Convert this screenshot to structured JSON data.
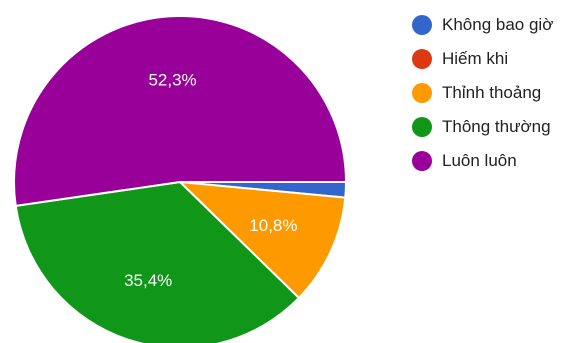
{
  "chart_data": {
    "type": "pie",
    "categories": [
      "Không bao giờ",
      "Hiếm khi",
      "Thỉnh thoảng",
      "Thông thường",
      "Luôn luôn"
    ],
    "values": [
      1.5,
      0.0,
      10.8,
      35.4,
      52.3
    ],
    "labels": [
      "",
      "",
      "10,8%",
      "35,4%",
      "52,3%"
    ],
    "colors": [
      "#3366cc",
      "#dc3912",
      "#ff9900",
      "#109618",
      "#990099"
    ],
    "legend_position": "right"
  }
}
